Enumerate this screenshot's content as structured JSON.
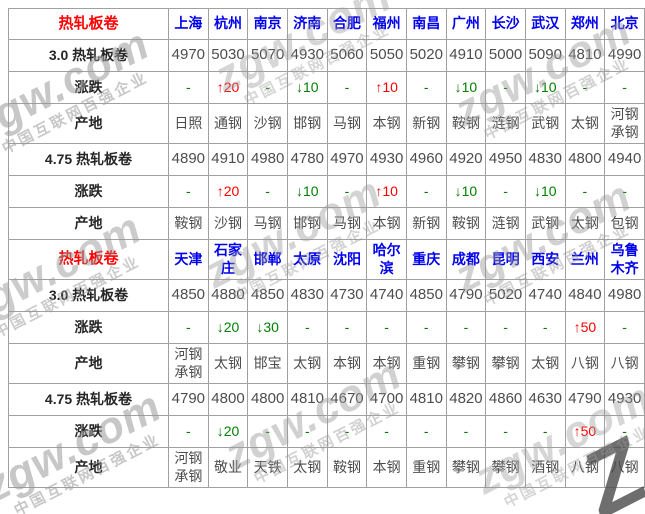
{
  "watermark": {
    "brand": "zgw.com",
    "slogan": "中国互联网百强企业"
  },
  "table": {
    "blocks": [
      {
        "title": "热轧板卷",
        "cities": [
          "上海",
          "杭州",
          "南京",
          "济南",
          "合肥",
          "福州",
          "南昌",
          "广州",
          "长沙",
          "武汉",
          "郑州",
          "北京"
        ],
        "rows": [
          {
            "label": "3.0 热轧板卷",
            "type": "price",
            "values": [
              "4970",
              "5030",
              "5070",
              "4930",
              "5060",
              "5050",
              "5020",
              "4910",
              "5000",
              "5090",
              "4810",
              "4990"
            ]
          },
          {
            "label": "涨跌",
            "type": "change",
            "values": [
              "-",
              "↑20",
              "-",
              "↓10",
              "-",
              "↑10",
              "-",
              "↓10",
              "-",
              "↓10",
              "-",
              "-"
            ]
          },
          {
            "label": "产地",
            "type": "origin",
            "values": [
              "日照",
              "通钢",
              "沙钢",
              "邯钢",
              "马钢",
              "本钢",
              "新钢",
              "鞍钢",
              "涟钢",
              "武钢",
              "太钢",
              "河钢承钢"
            ]
          },
          {
            "label": "4.75 热轧板卷",
            "type": "price",
            "values": [
              "4890",
              "4910",
              "4980",
              "4780",
              "4970",
              "4930",
              "4960",
              "4920",
              "4950",
              "4830",
              "4800",
              "4940"
            ]
          },
          {
            "label": "涨跌",
            "type": "change",
            "values": [
              "-",
              "↑20",
              "-",
              "↓10",
              "-",
              "↑10",
              "-",
              "↓10",
              "-",
              "↓10",
              "-",
              "-"
            ]
          },
          {
            "label": "产地",
            "type": "origin",
            "values": [
              "鞍钢",
              "沙钢",
              "马钢",
              "邯钢",
              "马钢",
              "本钢",
              "新钢",
              "鞍钢",
              "涟钢",
              "武钢",
              "太钢",
              "包钢"
            ]
          }
        ]
      },
      {
        "title": "热轧板卷",
        "cities": [
          "天津",
          "石家庄",
          "邯郸",
          "太原",
          "沈阳",
          "哈尔滨",
          "重庆",
          "成都",
          "昆明",
          "西安",
          "兰州",
          "乌鲁木齐"
        ],
        "rows": [
          {
            "label": "3.0 热轧板卷",
            "type": "price",
            "values": [
              "4850",
              "4880",
              "4850",
              "4830",
              "4730",
              "4740",
              "4850",
              "4790",
              "5020",
              "4740",
              "4840",
              "4980"
            ]
          },
          {
            "label": "涨跌",
            "type": "change",
            "values": [
              "-",
              "↓20",
              "↓30",
              "-",
              "-",
              "-",
              "-",
              "-",
              "-",
              "-",
              "↑50",
              "-"
            ]
          },
          {
            "label": "产地",
            "type": "origin",
            "values": [
              "河钢承钢",
              "太钢",
              "邯宝",
              "太钢",
              "本钢",
              "本钢",
              "重钢",
              "攀钢",
              "攀钢",
              "太钢",
              "八钢",
              "八钢"
            ]
          },
          {
            "label": "4.75 热轧板卷",
            "type": "price",
            "values": [
              "4790",
              "4800",
              "4800",
              "4810",
              "4670",
              "4700",
              "4810",
              "4820",
              "4860",
              "4630",
              "4790",
              "4930"
            ]
          },
          {
            "label": "涨跌",
            "type": "change",
            "values": [
              "-",
              "↓20",
              "-",
              "-",
              "-",
              "-",
              "-",
              "-",
              "-",
              "-",
              "↑50",
              "-"
            ]
          },
          {
            "label": "产地",
            "type": "origin",
            "values": [
              "河钢承钢",
              "敬业",
              "天铁",
              "太钢",
              "鞍钢",
              "本钢",
              "重钢",
              "攀钢",
              "攀钢",
              "酒钢",
              "八钢",
              "八钢"
            ]
          }
        ]
      }
    ]
  }
}
